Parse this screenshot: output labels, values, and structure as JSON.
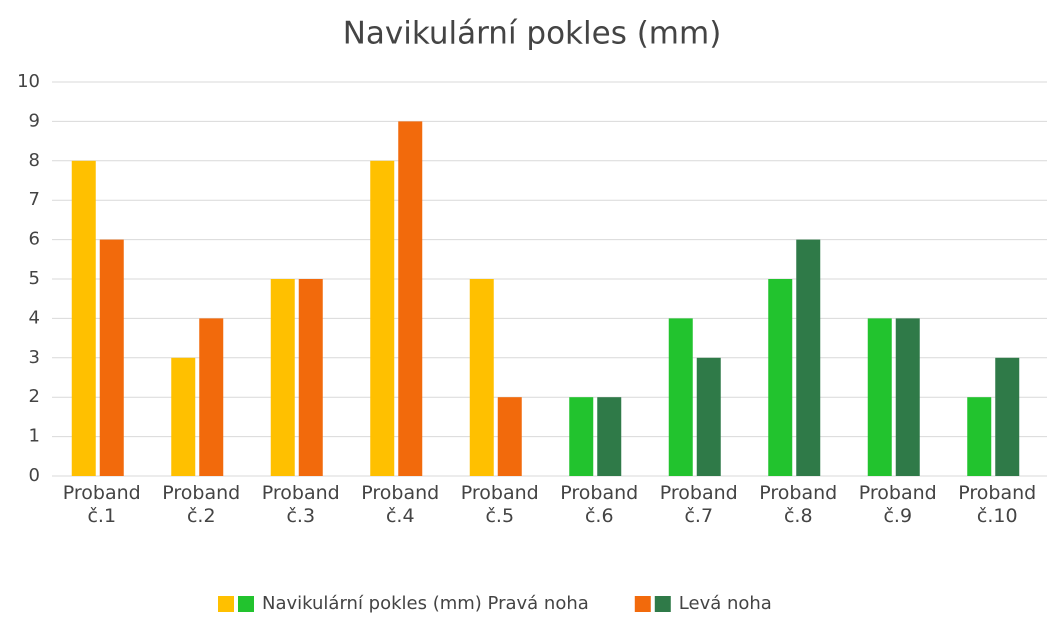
{
  "chart_data": {
    "type": "bar",
    "title": "Navikulární pokles (mm)",
    "categories": [
      "Proband č.1",
      "Proband č.2",
      "Proband č.3",
      "Proband č.4",
      "Proband č.5",
      "Proband č.6",
      "Proband č.7",
      "Proband č.8",
      "Proband č.9",
      "Proband č.10"
    ],
    "series": [
      {
        "name": "Navikulární pokles (mm) Pravá noha",
        "values": [
          8,
          3,
          5,
          8,
          5,
          2,
          4,
          5,
          4,
          2
        ],
        "colors": [
          "#ffc000",
          "#ffc000",
          "#ffc000",
          "#ffc000",
          "#ffc000",
          "#22c32e",
          "#22c32e",
          "#22c32e",
          "#22c32e",
          "#22c32e"
        ]
      },
      {
        "name": "Levá noha",
        "values": [
          6,
          4,
          5,
          9,
          2,
          2,
          3,
          6,
          4,
          3
        ],
        "colors": [
          "#f26a0c",
          "#f26a0c",
          "#f26a0c",
          "#f26a0c",
          "#f26a0c",
          "#2f7a48",
          "#2f7a48",
          "#2f7a48",
          "#2f7a48",
          "#2f7a48"
        ]
      }
    ],
    "ylim": [
      0,
      10
    ],
    "yticks": [
      0,
      1,
      2,
      3,
      4,
      5,
      6,
      7,
      8,
      9,
      10
    ],
    "grid": true,
    "legend": "bottom"
  }
}
